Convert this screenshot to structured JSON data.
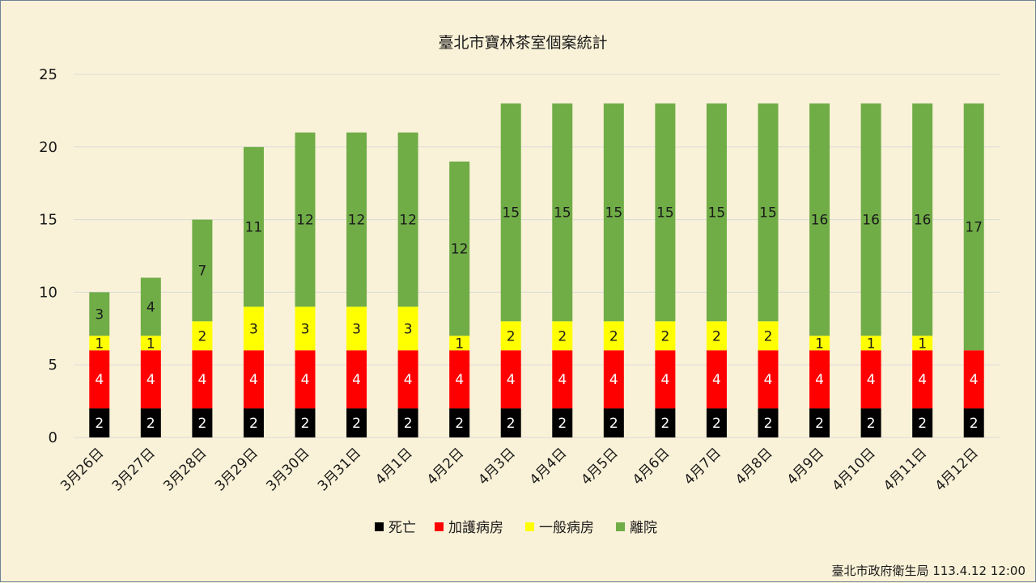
{
  "chart_data": {
    "type": "bar",
    "stacked": true,
    "title": "臺北市寶林茶室個案統計",
    "categories": [
      "3月26日",
      "3月27日",
      "3月28日",
      "3月29日",
      "3月30日",
      "3月31日",
      "4月1日",
      "4月2日",
      "4月3日",
      "4月4日",
      "4月5日",
      "4月6日",
      "4月7日",
      "4月8日",
      "4月9日",
      "4月10日",
      "4月11日",
      "4月12日"
    ],
    "series": [
      {
        "name": "死亡",
        "color": "#000000",
        "label_color": "#ffffff",
        "values": [
          2,
          2,
          2,
          2,
          2,
          2,
          2,
          2,
          2,
          2,
          2,
          2,
          2,
          2,
          2,
          2,
          2,
          2
        ]
      },
      {
        "name": "加護病房",
        "color": "#ff0000",
        "label_color": "#ffffff",
        "values": [
          4,
          4,
          4,
          4,
          4,
          4,
          4,
          4,
          4,
          4,
          4,
          4,
          4,
          4,
          4,
          4,
          4,
          4
        ]
      },
      {
        "name": "一般病房",
        "color": "#ffff00",
        "label_color": "#1a1a1a",
        "values": [
          1,
          1,
          2,
          3,
          3,
          3,
          3,
          1,
          2,
          2,
          2,
          2,
          2,
          2,
          1,
          1,
          1,
          0
        ]
      },
      {
        "name": "離院",
        "color": "#70ad47",
        "label_color": "#1a1a1a",
        "values": [
          3,
          4,
          7,
          11,
          12,
          12,
          12,
          12,
          15,
          15,
          15,
          15,
          15,
          15,
          16,
          16,
          16,
          17
        ]
      }
    ],
    "ylim": [
      0,
      25
    ],
    "yticks": [
      0,
      5,
      10,
      15,
      20,
      25
    ],
    "grid": true,
    "legend_position": "bottom",
    "xlabel": "",
    "ylabel": ""
  },
  "source_note": "臺北市政府衛生局 113.4.12 12:00"
}
